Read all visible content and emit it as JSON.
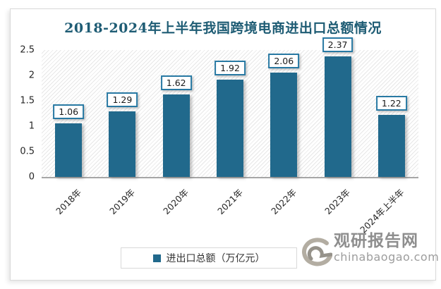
{
  "chart_data": {
    "type": "bar",
    "title": "2018-2024年上半年我国跨境电商进出口总额情况",
    "categories": [
      "2018年",
      "2019年",
      "2020年",
      "2021年",
      "2022年",
      "2023年",
      "2024年上半年"
    ],
    "series": [
      {
        "name": "进出口总额（万亿元）",
        "values": [
          1.06,
          1.29,
          1.62,
          1.92,
          2.06,
          2.37,
          1.22
        ],
        "color": "#21698c"
      }
    ],
    "data_labels": [
      "1.06",
      "1.29",
      "1.62",
      "1.92",
      "2.06",
      "2.37",
      "1.22"
    ],
    "xlabel": "",
    "ylabel": "",
    "ylim": [
      0,
      2.5
    ],
    "yticks": [
      "0",
      "0.5",
      "1",
      "1.5",
      "2",
      "2.5"
    ],
    "grid": false,
    "legend_position": "bottom",
    "plot_background": "diagonal-hatch",
    "title_color": "#1e5c74",
    "axis_line_color": "#a6a6a6"
  },
  "watermark": {
    "brand": "观研报告网",
    "domain": "chinabaogao.com",
    "logo": "swirl-logo",
    "color": "#8e8e8e"
  }
}
